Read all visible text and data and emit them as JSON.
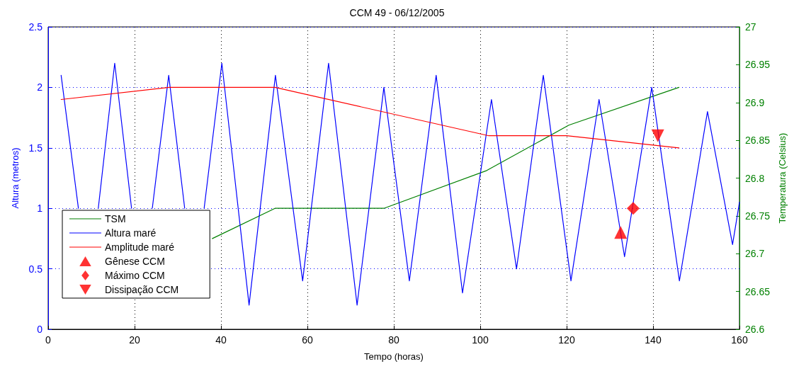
{
  "chart_data": {
    "type": "line",
    "title": "CCM 49 - 06/12/2005",
    "xlabel": "Tempo (horas)",
    "ylabel": "Altura (metros)",
    "y2label": "Temperatura (Celsius)",
    "xlim": [
      0,
      160
    ],
    "xticks": [
      0,
      20,
      40,
      60,
      80,
      100,
      120,
      140,
      160
    ],
    "ylim": [
      0,
      2.5
    ],
    "yticks": [
      0,
      0.5,
      1,
      1.5,
      2,
      2.5
    ],
    "y2lim": [
      26.6,
      27
    ],
    "y2ticks": [
      26.6,
      26.65,
      26.7,
      26.75,
      26.8,
      26.85,
      26.9,
      26.95,
      27
    ],
    "grid": true,
    "legend": "bottom left",
    "marker": "none",
    "line_style": "solid",
    "series": [
      {
        "name": "TSM",
        "color": "#008000",
        "axis": "y2",
        "x": [
          38,
          52.5,
          77.7,
          101.5,
          120.5,
          146
        ],
        "values": [
          26.72,
          26.76,
          26.76,
          26.81,
          26.87,
          26.92
        ]
      },
      {
        "name": "Altura maré",
        "color": "#0000ff",
        "x": [
          3,
          7.0,
          9.4,
          11.6,
          15.4,
          19.3,
          21.6,
          24.1,
          27.9,
          31.6,
          33.9,
          36.1,
          40.2,
          46.5,
          52.6,
          58.9,
          64.9,
          71.5,
          77.7,
          83.6,
          89.8,
          95.9,
          102.6,
          108.4,
          114.6,
          121,
          127.5,
          133.4,
          139.7,
          146.1,
          152.6,
          158.4,
          160
        ],
        "values": [
          2.1,
          1.0,
          null,
          1.0,
          2.2,
          1.0,
          null,
          1.0,
          2.1,
          1.0,
          null,
          1.0,
          2.2,
          0.2,
          2.1,
          0.4,
          2.2,
          0.2,
          2.0,
          0.4,
          2.1,
          0.3,
          1.9,
          0.5,
          2.1,
          0.4,
          1.9,
          0.6,
          2.0,
          0.4,
          1.8,
          0.7,
          1.05
        ]
      },
      {
        "name": "Amplitude maré",
        "color": "#ff0000",
        "x": [
          3,
          28,
          52.5,
          102,
          120,
          146
        ],
        "values": [
          1.9,
          2.0,
          2.0,
          1.6,
          1.6,
          1.5
        ]
      },
      {
        "name": "Gênese CCM",
        "type": "scatter",
        "marker": "triangle",
        "color": "#ff0000",
        "x": [
          132.5
        ],
        "values": [
          0.8
        ]
      },
      {
        "name": "Máximo CCM",
        "type": "scatter",
        "marker": "diamond",
        "color": "#ff0000",
        "x": [
          135.4
        ],
        "values": [
          1.0
        ]
      },
      {
        "name": "Dissipação CCM",
        "type": "scatter",
        "marker": "triangle-down",
        "color": "#ff0000",
        "x": [
          141.1
        ],
        "values": [
          1.6
        ]
      }
    ]
  }
}
